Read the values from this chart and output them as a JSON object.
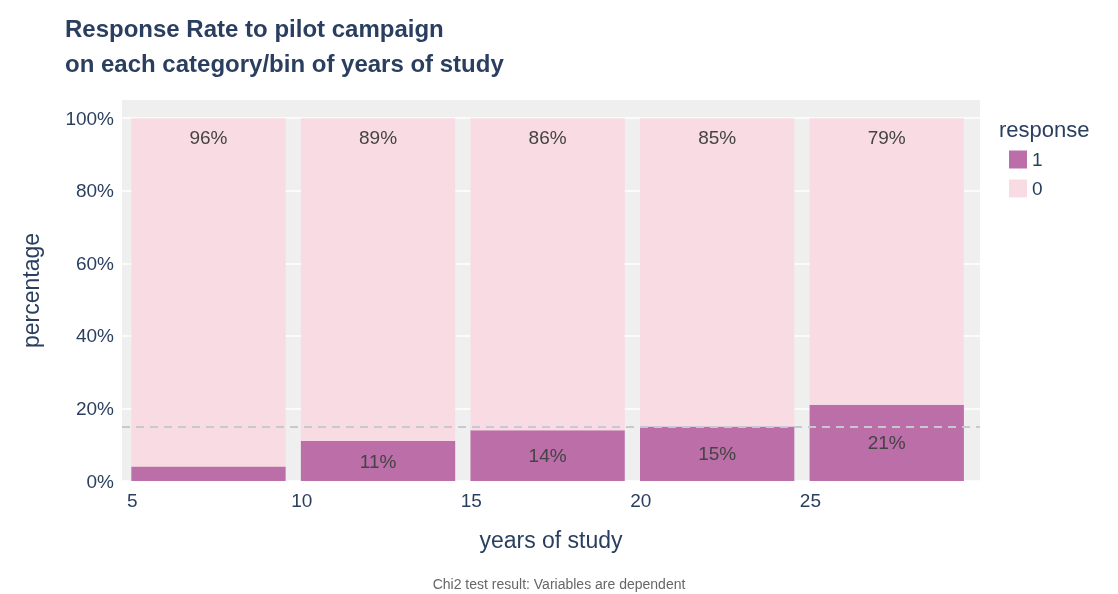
{
  "chart_data": {
    "type": "bar",
    "title": "Response Rate to pilot campaign\non each category/bin of years of study",
    "xlabel": "years of study",
    "ylabel": "percentage",
    "legend_title": "response",
    "x": [
      7.25,
      12.25,
      17.25,
      22.25,
      27.25
    ],
    "series": [
      {
        "name": "1",
        "color": "#bb6ea7",
        "values": [
          4,
          11,
          14,
          15,
          21
        ],
        "value_labels": [
          null,
          "11%",
          "14%",
          "15%",
          "21%"
        ]
      },
      {
        "name": "0",
        "color": "#f9dce3",
        "values": [
          96,
          89,
          86,
          85,
          79
        ],
        "value_labels": [
          "96%",
          "89%",
          "86%",
          "85%",
          "79%"
        ]
      }
    ],
    "stacked": true,
    "xlim": [
      4.7,
      30
    ],
    "xticks": [
      5,
      10,
      15,
      20,
      25
    ],
    "ylim": [
      0,
      105
    ],
    "yticks": [
      {
        "value": 0,
        "label": "0%"
      },
      {
        "value": 20,
        "label": "20%"
      },
      {
        "value": 40,
        "label": "40%"
      },
      {
        "value": 60,
        "label": "60%"
      },
      {
        "value": 80,
        "label": "80%"
      },
      {
        "value": 100,
        "label": "100%"
      }
    ],
    "ref_lines": [
      {
        "axis": "y",
        "value": 15,
        "label": null,
        "color": "#c8c8d0",
        "line_style": "dashed"
      }
    ],
    "annotations": [
      "Chi2 test result: Variables are dependent"
    ],
    "grid": "y",
    "legend": "top right"
  }
}
